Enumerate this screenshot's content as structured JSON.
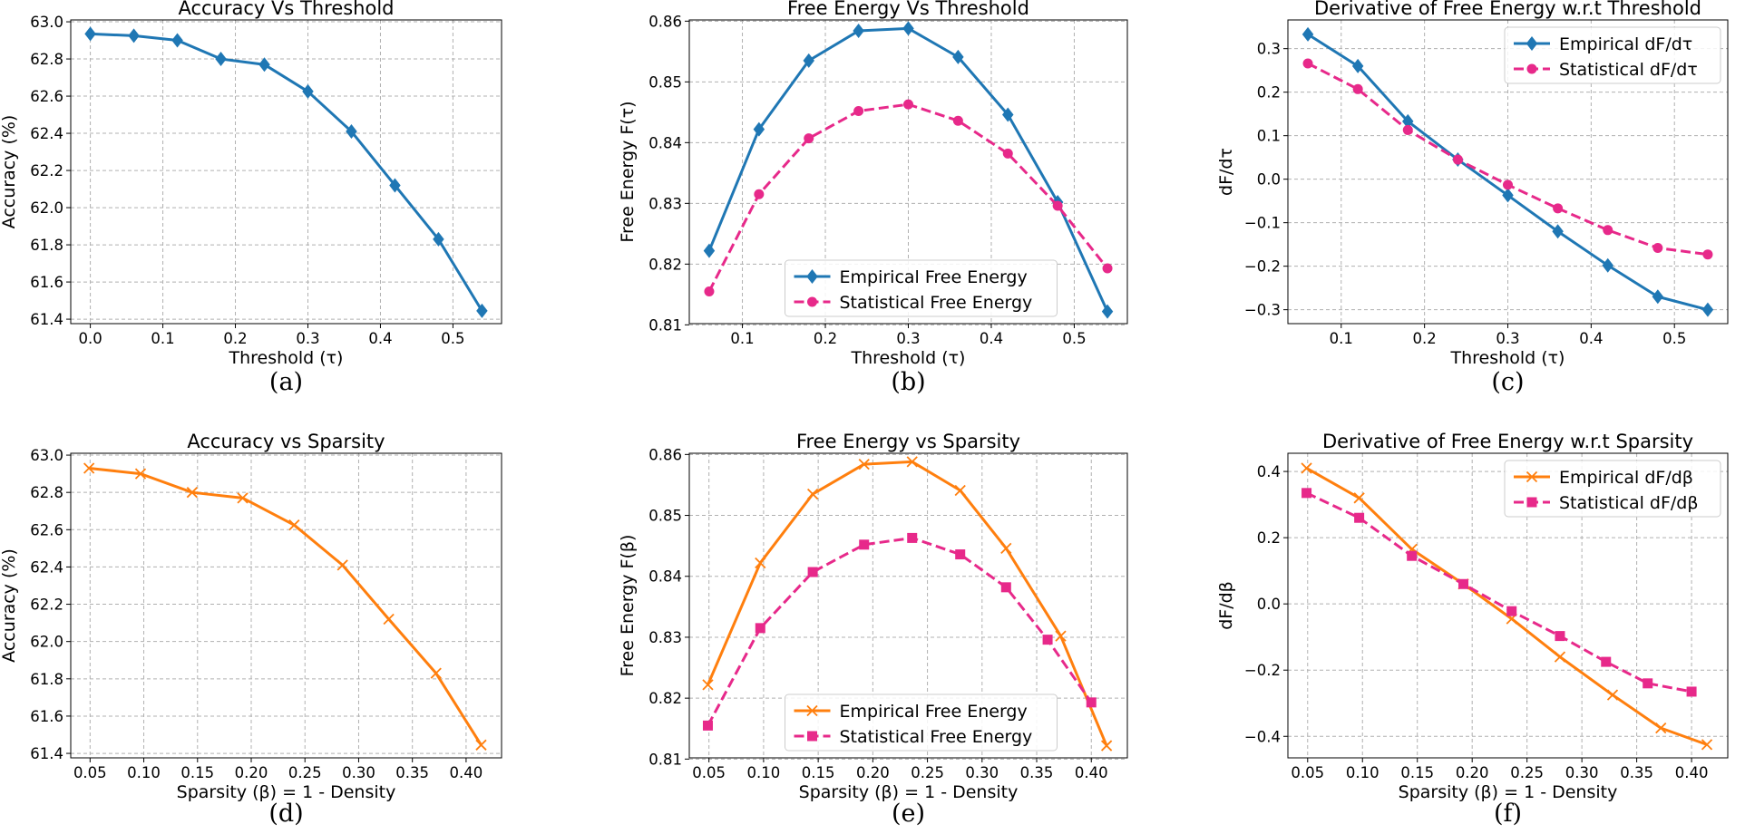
{
  "figure": {
    "panels": [
      {
        "label": "(a)",
        "chart_data": {
          "type": "line",
          "title": "Accuracy Vs Threshold",
          "xlabel": "Threshold (τ)",
          "ylabel": "Accuracy (%)",
          "xlim": [
            -0.027,
            0.567
          ],
          "ylim": [
            61.376,
            63.01
          ],
          "xticks": [
            0.0,
            0.1,
            0.2,
            0.3,
            0.4,
            0.5
          ],
          "xtick_labels": [
            "0.0",
            "0.1",
            "0.2",
            "0.3",
            "0.4",
            "0.5"
          ],
          "yticks": [
            61.4,
            61.6,
            61.8,
            62.0,
            62.2,
            62.4,
            62.6,
            62.8,
            63.0
          ],
          "ytick_labels": [
            "61.4",
            "61.6",
            "61.8",
            "62.0",
            "62.2",
            "62.4",
            "62.6",
            "62.8",
            "63.0"
          ],
          "grid": true,
          "legend": null,
          "series": [
            {
              "name": "",
              "color": "#1f77b4",
              "dash": "solid",
              "marker": "diamond",
              "x": [
                0.0,
                0.06,
                0.12,
                0.18,
                0.24,
                0.3,
                0.36,
                0.42,
                0.48,
                0.54
              ],
              "y": [
                62.935,
                62.925,
                62.9,
                62.8,
                62.77,
                62.625,
                62.41,
                62.12,
                61.83,
                61.445
              ]
            }
          ]
        }
      },
      {
        "label": "(b)",
        "chart_data": {
          "type": "line",
          "title": "Free Energy Vs Threshold",
          "xlabel": "Threshold (τ)",
          "ylabel": "Free Energy F(τ)",
          "xlim": [
            0.036,
            0.564
          ],
          "ylim": [
            0.8102,
            0.8602
          ],
          "xticks": [
            0.1,
            0.2,
            0.3,
            0.4,
            0.5
          ],
          "xtick_labels": [
            "0.1",
            "0.2",
            "0.3",
            "0.4",
            "0.5"
          ],
          "yticks": [
            0.81,
            0.82,
            0.83,
            0.84,
            0.85,
            0.86
          ],
          "ytick_labels": [
            "0.81",
            "0.82",
            "0.83",
            "0.84",
            "0.85",
            "0.86"
          ],
          "grid": true,
          "legend": "lower-center",
          "series": [
            {
              "name": "Empirical Free Energy",
              "color": "#1f77b4",
              "dash": "solid",
              "marker": "diamond",
              "x": [
                0.06,
                0.12,
                0.18,
                0.24,
                0.3,
                0.36,
                0.42,
                0.48,
                0.54
              ],
              "y": [
                0.8222,
                0.8422,
                0.8535,
                0.8584,
                0.8588,
                0.8541,
                0.8446,
                0.8302,
                0.8122
              ]
            },
            {
              "name": "Statistical Free Energy",
              "color": "#e7298a",
              "dash": "dashed",
              "marker": "circle",
              "x": [
                0.06,
                0.12,
                0.18,
                0.24,
                0.3,
                0.36,
                0.42,
                0.48,
                0.54
              ],
              "y": [
                0.8155,
                0.8315,
                0.8407,
                0.8452,
                0.8463,
                0.8436,
                0.8382,
                0.8296,
                0.8193
              ]
            }
          ]
        }
      },
      {
        "label": "(c)",
        "chart_data": {
          "type": "line",
          "title": "Derivative of Free Energy w.r.t Threshold",
          "xlabel": "Threshold (τ)",
          "ylabel": "dF/dτ",
          "xlim": [
            0.036,
            0.564
          ],
          "ylim": [
            -0.332,
            0.366
          ],
          "xticks": [
            0.1,
            0.2,
            0.3,
            0.4,
            0.5
          ],
          "xtick_labels": [
            "0.1",
            "0.2",
            "0.3",
            "0.4",
            "0.5"
          ],
          "yticks": [
            -0.3,
            -0.2,
            -0.1,
            0.0,
            0.1,
            0.2,
            0.3
          ],
          "ytick_labels": [
            "−0.3",
            "−0.2",
            "−0.1",
            "0.0",
            "0.1",
            "0.2",
            "0.3"
          ],
          "grid": true,
          "legend": "upper-right",
          "series": [
            {
              "name": "Empirical dF/dτ",
              "color": "#1f77b4",
              "dash": "solid",
              "marker": "diamond",
              "x": [
                0.06,
                0.12,
                0.18,
                0.24,
                0.3,
                0.36,
                0.42,
                0.48,
                0.54
              ],
              "y": [
                0.333,
                0.26,
                0.133,
                0.045,
                -0.037,
                -0.12,
                -0.198,
                -0.27,
                -0.3
              ]
            },
            {
              "name": "Statistical dF/dτ",
              "color": "#e7298a",
              "dash": "dashed",
              "marker": "circle",
              "x": [
                0.06,
                0.12,
                0.18,
                0.24,
                0.3,
                0.36,
                0.42,
                0.48,
                0.54
              ],
              "y": [
                0.266,
                0.207,
                0.113,
                0.045,
                -0.013,
                -0.067,
                -0.117,
                -0.158,
                -0.173
              ]
            }
          ]
        }
      },
      {
        "label": "(d)",
        "chart_data": {
          "type": "line",
          "title": "Accuracy vs Sparsity",
          "xlabel": "Sparsity (β) = 1 - Density",
          "ylabel": "Accuracy (%)",
          "xlim": [
            0.032,
            0.433
          ],
          "ylim": [
            61.376,
            63.01
          ],
          "xticks": [
            0.05,
            0.1,
            0.15,
            0.2,
            0.25,
            0.3,
            0.35,
            0.4
          ],
          "xtick_labels": [
            "0.05",
            "0.10",
            "0.15",
            "0.20",
            "0.25",
            "0.30",
            "0.35",
            "0.40"
          ],
          "yticks": [
            61.4,
            61.6,
            61.8,
            62.0,
            62.2,
            62.4,
            62.6,
            62.8,
            63.0
          ],
          "ytick_labels": [
            "61.4",
            "61.6",
            "61.8",
            "62.0",
            "62.2",
            "62.4",
            "62.6",
            "62.8",
            "63.0"
          ],
          "grid": true,
          "legend": null,
          "series": [
            {
              "name": "",
              "color": "#ff7f0e",
              "dash": "solid",
              "marker": "x",
              "x": [
                0.049,
                0.097,
                0.145,
                0.192,
                0.24,
                0.285,
                0.328,
                0.372,
                0.414
              ],
              "y": [
                62.93,
                62.9,
                62.8,
                62.77,
                62.625,
                62.41,
                62.12,
                61.83,
                61.445
              ]
            }
          ]
        }
      },
      {
        "label": "(e)",
        "chart_data": {
          "type": "line",
          "title": "Free Energy vs Sparsity",
          "xlabel": "Sparsity (β) = 1 - Density",
          "ylabel": "Free Energy F(β)",
          "xlim": [
            0.032,
            0.433
          ],
          "ylim": [
            0.8102,
            0.8602
          ],
          "xticks": [
            0.05,
            0.1,
            0.15,
            0.2,
            0.25,
            0.3,
            0.35,
            0.4
          ],
          "xtick_labels": [
            "0.05",
            "0.10",
            "0.15",
            "0.20",
            "0.25",
            "0.30",
            "0.35",
            "0.40"
          ],
          "yticks": [
            0.81,
            0.82,
            0.83,
            0.84,
            0.85,
            0.86
          ],
          "ytick_labels": [
            "0.81",
            "0.82",
            "0.83",
            "0.84",
            "0.85",
            "0.86"
          ],
          "grid": true,
          "legend": "lower-center",
          "series": [
            {
              "name": "Empirical Free Energy",
              "color": "#ff7f0e",
              "dash": "solid",
              "marker": "x",
              "x": [
                0.049,
                0.097,
                0.145,
                0.192,
                0.236,
                0.28,
                0.322,
                0.372,
                0.414
              ],
              "y": [
                0.8222,
                0.8422,
                0.8535,
                0.8584,
                0.8588,
                0.8541,
                0.8446,
                0.8302,
                0.8122
              ]
            },
            {
              "name": "Statistical Free Energy",
              "color": "#e7298a",
              "dash": "dashed",
              "marker": "square",
              "x": [
                0.049,
                0.097,
                0.145,
                0.192,
                0.236,
                0.28,
                0.322,
                0.36,
                0.4
              ],
              "y": [
                0.8155,
                0.8315,
                0.8407,
                0.8452,
                0.8463,
                0.8436,
                0.8382,
                0.8296,
                0.8193
              ]
            }
          ]
        }
      },
      {
        "label": "(f)",
        "chart_data": {
          "type": "line",
          "title": "Derivative of Free Energy w.r.t Sparsity",
          "xlabel": "Sparsity (β) = 1 - Density",
          "ylabel": "dF/dβ",
          "xlim": [
            0.032,
            0.433
          ],
          "ylim": [
            -0.465,
            0.455
          ],
          "xticks": [
            0.05,
            0.1,
            0.15,
            0.2,
            0.25,
            0.3,
            0.35,
            0.4
          ],
          "xtick_labels": [
            "0.05",
            "0.10",
            "0.15",
            "0.20",
            "0.25",
            "0.30",
            "0.35",
            "0.40"
          ],
          "yticks": [
            -0.4,
            -0.2,
            0.0,
            0.2,
            0.4
          ],
          "ytick_labels": [
            "−0.4",
            "−0.2",
            "0.0",
            "0.2",
            "0.4"
          ],
          "grid": true,
          "legend": "upper-right",
          "series": [
            {
              "name": "Empirical dF/dβ",
              "color": "#ff7f0e",
              "dash": "solid",
              "marker": "x",
              "x": [
                0.049,
                0.097,
                0.145,
                0.192,
                0.236,
                0.28,
                0.328,
                0.372,
                0.414
              ],
              "y": [
                0.41,
                0.32,
                0.165,
                0.06,
                -0.045,
                -0.16,
                -0.275,
                -0.375,
                -0.425
              ]
            },
            {
              "name": "Statistical dF/dβ",
              "color": "#e7298a",
              "dash": "dashed",
              "marker": "square",
              "x": [
                0.049,
                0.097,
                0.145,
                0.192,
                0.236,
                0.28,
                0.322,
                0.36,
                0.4
              ],
              "y": [
                0.335,
                0.26,
                0.145,
                0.06,
                -0.022,
                -0.097,
                -0.175,
                -0.24,
                -0.265
              ]
            }
          ]
        }
      }
    ]
  }
}
